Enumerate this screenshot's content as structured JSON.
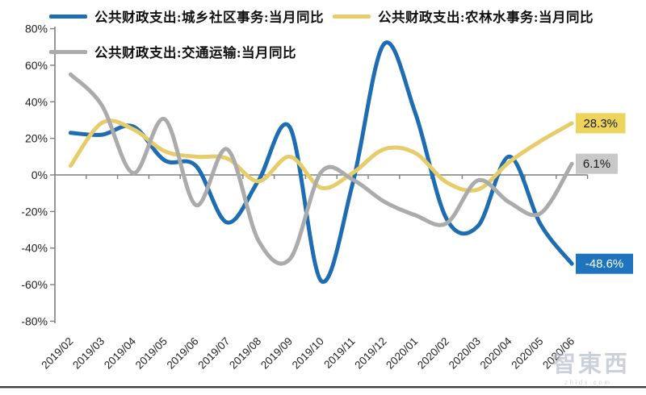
{
  "chart_data": {
    "type": "line",
    "title": "",
    "categories": [
      "2019/02",
      "2019/03",
      "2019/04",
      "2019/05",
      "2019/06",
      "2019/07",
      "2019/08",
      "2019/09",
      "2019/10",
      "2019/11",
      "2019/12",
      "2020/01",
      "2020/02",
      "2020/03",
      "2020/04",
      "2020/05",
      "2020/06"
    ],
    "y_axis": {
      "min": -80,
      "max": 80,
      "step": 20,
      "tick_labels": [
        "80%",
        "60%",
        "40%",
        "20%",
        "0%",
        "-20%",
        "-40%",
        "-60%",
        "-80%"
      ]
    },
    "grid": false,
    "legend_position": "top-left",
    "series": [
      {
        "name": "公共财政支出:城乡社区事务:当月同比",
        "color": "#1E6CB2",
        "values": [
          23,
          22,
          26.5,
          8,
          5,
          -26,
          -3,
          26,
          -58,
          -5,
          71.5,
          34,
          -24,
          -28,
          10,
          -27,
          -48.6
        ],
        "end_label": "-48.6%",
        "end_label_bg": "#1E74BD",
        "end_label_fg": "#FFFFFF"
      },
      {
        "name": "公共财政支出:农林水事务:当月同比",
        "color": "#E6CD6A",
        "values": [
          5,
          28.5,
          25,
          13,
          10,
          9,
          -3.5,
          10,
          -7,
          1,
          14,
          12,
          -4,
          -8,
          7,
          18.5,
          28.3
        ],
        "end_label": "28.3%",
        "end_label_bg": "#EDD45C",
        "end_label_fg": "#1a1a1a"
      },
      {
        "name": "公共财政支出:交通运输:当月同比",
        "color": "#ABABAB",
        "values": [
          55,
          38,
          1,
          30.5,
          -16.5,
          14,
          -36,
          -46,
          1.5,
          -2.5,
          -14.5,
          -22,
          -26.5,
          -3,
          -15,
          -21,
          6.1
        ],
        "end_label": "6.1%",
        "end_label_bg": "#C8C8C8",
        "end_label_fg": "#1a1a1a"
      }
    ]
  },
  "watermark": {
    "text": "智東西",
    "subtext": "zhidx.com"
  }
}
